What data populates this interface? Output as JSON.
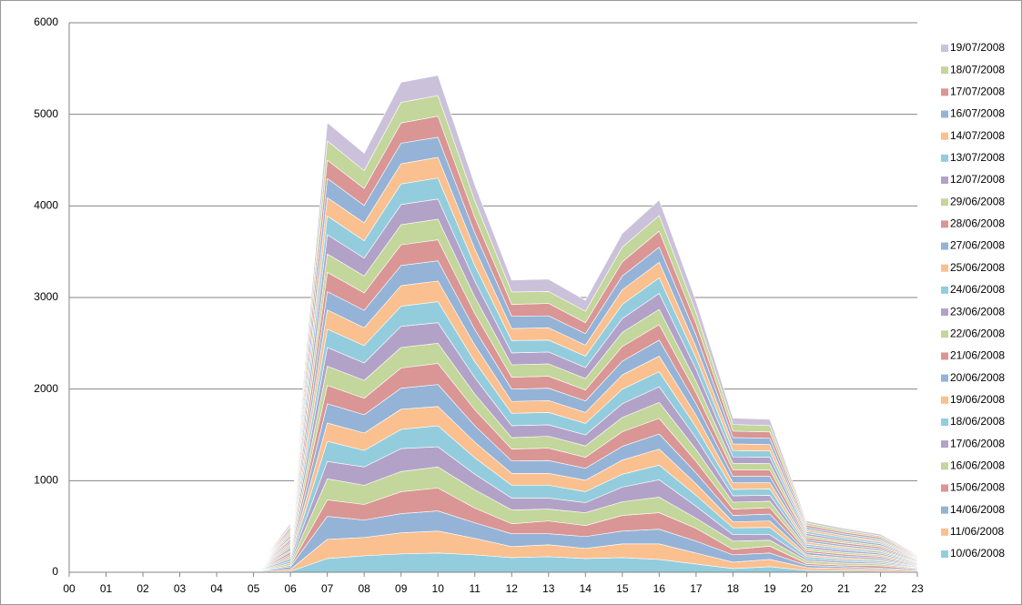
{
  "chart_data": {
    "type": "stacked-area",
    "categories": [
      "00",
      "01",
      "02",
      "03",
      "04",
      "05",
      "06",
      "07",
      "08",
      "09",
      "10",
      "11",
      "12",
      "13",
      "14",
      "15",
      "16",
      "17",
      "18",
      "19",
      "20",
      "21",
      "22",
      "23"
    ],
    "ylim": [
      0,
      6000
    ],
    "yticks": [
      0,
      1000,
      2000,
      3000,
      4000,
      5000,
      6000
    ],
    "grid": true,
    "legend": "right",
    "series": [
      {
        "name": "10/06/2008",
        "color": "#93cddd",
        "values": [
          0,
          0,
          0,
          0,
          0,
          0,
          10,
          150,
          180,
          200,
          210,
          190,
          160,
          170,
          150,
          160,
          140,
          90,
          40,
          60,
          20,
          15,
          10,
          5
        ]
      },
      {
        "name": "11/06/2008",
        "color": "#fac090",
        "values": [
          0,
          0,
          0,
          0,
          0,
          0,
          20,
          210,
          200,
          230,
          240,
          180,
          120,
          130,
          110,
          150,
          170,
          120,
          70,
          80,
          30,
          25,
          20,
          10
        ]
      },
      {
        "name": "14/06/2008",
        "color": "#95b3d7",
        "values": [
          0,
          0,
          0,
          0,
          0,
          0,
          30,
          250,
          190,
          210,
          220,
          170,
          140,
          120,
          130,
          140,
          160,
          130,
          80,
          70,
          25,
          20,
          15,
          10
        ]
      },
      {
        "name": "15/06/2008",
        "color": "#d99694",
        "values": [
          0,
          0,
          0,
          0,
          0,
          0,
          15,
          180,
          170,
          240,
          250,
          160,
          110,
          140,
          120,
          170,
          180,
          140,
          60,
          75,
          20,
          18,
          25,
          12
        ]
      },
      {
        "name": "16/06/2008",
        "color": "#c3d69b",
        "values": [
          0,
          0,
          0,
          0,
          0,
          0,
          25,
          230,
          210,
          220,
          230,
          200,
          150,
          130,
          140,
          150,
          170,
          110,
          90,
          65,
          30,
          22,
          20,
          8
        ]
      },
      {
        "name": "17/06/2008",
        "color": "#b3a2c7",
        "values": [
          0,
          0,
          0,
          0,
          0,
          0,
          20,
          190,
          200,
          250,
          220,
          170,
          130,
          120,
          110,
          160,
          190,
          130,
          70,
          60,
          20,
          20,
          15,
          6
        ]
      },
      {
        "name": "18/06/2008",
        "color": "#93cddd",
        "values": [
          0,
          0,
          0,
          0,
          0,
          0,
          30,
          220,
          180,
          210,
          230,
          180,
          140,
          140,
          120,
          140,
          160,
          120,
          75,
          80,
          25,
          20,
          18,
          9
        ]
      },
      {
        "name": "19/06/2008",
        "color": "#fac090",
        "values": [
          0,
          0,
          0,
          0,
          0,
          0,
          25,
          200,
          190,
          220,
          210,
          170,
          130,
          130,
          125,
          155,
          175,
          125,
          65,
          70,
          22,
          18,
          16,
          7
        ]
      },
      {
        "name": "20/06/2008",
        "color": "#95b3d7",
        "values": [
          0,
          0,
          0,
          0,
          0,
          0,
          20,
          210,
          200,
          230,
          240,
          180,
          135,
          140,
          130,
          150,
          165,
          120,
          70,
          75,
          25,
          20,
          18,
          8
        ]
      },
      {
        "name": "21/06/2008",
        "color": "#d99694",
        "values": [
          0,
          0,
          0,
          0,
          0,
          0,
          25,
          200,
          180,
          220,
          230,
          175,
          130,
          135,
          120,
          160,
          170,
          125,
          70,
          70,
          20,
          20,
          16,
          8
        ]
      },
      {
        "name": "22/06/2008",
        "color": "#c3d69b",
        "values": [
          0,
          0,
          0,
          0,
          0,
          0,
          20,
          210,
          195,
          225,
          220,
          170,
          125,
          130,
          125,
          155,
          175,
          130,
          75,
          70,
          25,
          20,
          18,
          9
        ]
      },
      {
        "name": "23/06/2008",
        "color": "#b3a2c7",
        "values": [
          0,
          0,
          0,
          0,
          0,
          0,
          25,
          205,
          190,
          230,
          225,
          180,
          130,
          125,
          120,
          150,
          170,
          125,
          70,
          65,
          22,
          22,
          17,
          8
        ]
      },
      {
        "name": "24/06/2008",
        "color": "#93cddd",
        "values": [
          0,
          0,
          0,
          0,
          0,
          0,
          20,
          200,
          190,
          220,
          230,
          175,
          135,
          135,
          125,
          160,
          165,
          120,
          70,
          70,
          23,
          20,
          18,
          8
        ]
      },
      {
        "name": "25/06/2008",
        "color": "#fac090",
        "values": [
          0,
          0,
          0,
          0,
          0,
          0,
          25,
          210,
          195,
          225,
          225,
          180,
          130,
          130,
          120,
          155,
          170,
          130,
          72,
          68,
          24,
          19,
          16,
          7
        ]
      },
      {
        "name": "27/06/2008",
        "color": "#95b3d7",
        "values": [
          0,
          0,
          0,
          0,
          0,
          0,
          20,
          200,
          190,
          220,
          220,
          170,
          135,
          135,
          125,
          150,
          175,
          125,
          70,
          70,
          22,
          20,
          17,
          8
        ]
      },
      {
        "name": "28/06/2008",
        "color": "#d99694",
        "values": [
          0,
          0,
          0,
          0,
          0,
          0,
          25,
          210,
          190,
          225,
          230,
          175,
          130,
          130,
          120,
          160,
          170,
          120,
          70,
          68,
          23,
          21,
          18,
          9
        ]
      },
      {
        "name": "29/06/2008",
        "color": "#c3d69b",
        "values": [
          0,
          0,
          0,
          0,
          0,
          0,
          20,
          200,
          185,
          220,
          225,
          180,
          135,
          135,
          125,
          155,
          165,
          125,
          72,
          70,
          24,
          20,
          16,
          8
        ]
      },
      {
        "name": "12/07/2008",
        "color": "#b3a2c7",
        "values": [
          0,
          0,
          0,
          0,
          0,
          0,
          25,
          210,
          195,
          220,
          220,
          175,
          130,
          130,
          120,
          150,
          175,
          130,
          70,
          70,
          22,
          20,
          18,
          7
        ]
      },
      {
        "name": "13/07/2008",
        "color": "#93cddd",
        "values": [
          0,
          0,
          0,
          0,
          0,
          0,
          20,
          205,
          190,
          225,
          230,
          170,
          135,
          130,
          125,
          155,
          170,
          125,
          70,
          68,
          23,
          20,
          17,
          8
        ]
      },
      {
        "name": "14/07/2008",
        "color": "#fac090",
        "values": [
          0,
          0,
          0,
          0,
          0,
          0,
          25,
          200,
          195,
          220,
          225,
          180,
          130,
          135,
          120,
          160,
          170,
          120,
          72,
          70,
          24,
          19,
          18,
          9
        ]
      },
      {
        "name": "16/07/2008",
        "color": "#95b3d7",
        "values": [
          0,
          0,
          0,
          0,
          0,
          0,
          20,
          210,
          190,
          225,
          220,
          175,
          135,
          130,
          125,
          150,
          165,
          130,
          70,
          70,
          22,
          20,
          16,
          8
        ]
      },
      {
        "name": "17/07/2008",
        "color": "#d99694",
        "values": [
          0,
          0,
          0,
          0,
          0,
          0,
          25,
          200,
          185,
          220,
          230,
          170,
          130,
          135,
          120,
          155,
          175,
          125,
          70,
          68,
          23,
          20,
          18,
          8
        ]
      },
      {
        "name": "18/07/2008",
        "color": "#c3d69b",
        "values": [
          0,
          0,
          0,
          0,
          0,
          0,
          20,
          210,
          195,
          225,
          225,
          180,
          135,
          130,
          125,
          160,
          170,
          120,
          72,
          70,
          24,
          21,
          17,
          7
        ]
      },
      {
        "name": "19/07/2008",
        "color": "#ccc1da",
        "values": [
          0,
          0,
          0,
          0,
          0,
          0,
          25,
          200,
          190,
          220,
          220,
          175,
          130,
          135,
          120,
          150,
          170,
          125,
          70,
          68,
          22,
          20,
          18,
          8
        ]
      }
    ]
  }
}
